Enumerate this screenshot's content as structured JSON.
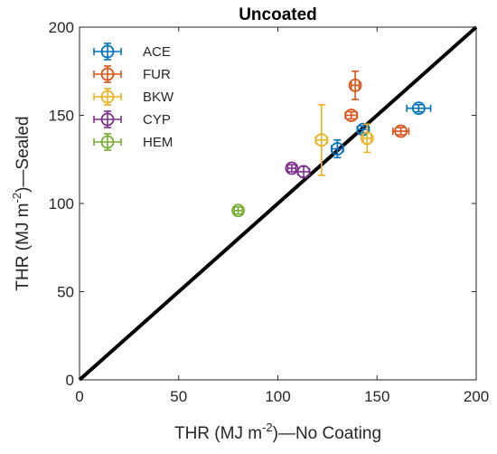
{
  "chart_data": {
    "type": "scatter",
    "title": "Uncoated",
    "xlabel": {
      "pre": "THR (MJ m",
      "sup": "-2",
      "post": ")—No Coating"
    },
    "ylabel": {
      "pre": "THR (MJ m",
      "sup": "-2",
      "post": ")—Sealed"
    },
    "xlim": [
      0,
      200
    ],
    "ylim": [
      0,
      200
    ],
    "xticks": [
      0,
      50,
      100,
      150,
      200
    ],
    "yticks": [
      0,
      50,
      100,
      150,
      200
    ],
    "grid": false,
    "legend_position": "top-left",
    "reference_line": {
      "x": [
        0,
        200
      ],
      "y": [
        0,
        200
      ],
      "color": "#000000"
    },
    "series": [
      {
        "name": "ACE",
        "color": "#0072BD",
        "points": [
          {
            "x": 130,
            "y": 131,
            "xerr": 3,
            "yerr": 5
          },
          {
            "x": 143,
            "y": 142,
            "xerr": 3,
            "yerr": 2
          },
          {
            "x": 171,
            "y": 154,
            "xerr": 6,
            "yerr": 2
          }
        ]
      },
      {
        "name": "FUR",
        "color": "#D95319",
        "points": [
          {
            "x": 137,
            "y": 150,
            "xerr": 3,
            "yerr": 2
          },
          {
            "x": 139,
            "y": 167,
            "xerr": 2,
            "yerr": 8
          },
          {
            "x": 162,
            "y": 141,
            "xerr": 4,
            "yerr": 2
          }
        ]
      },
      {
        "name": "BKW",
        "color": "#EDB120",
        "points": [
          {
            "x": 122,
            "y": 136,
            "xerr": 3,
            "yerr": 20
          },
          {
            "x": 145,
            "y": 137,
            "xerr": 2,
            "yerr": 8
          }
        ]
      },
      {
        "name": "CYP",
        "color": "#7E2F8E",
        "points": [
          {
            "x": 107,
            "y": 120,
            "xerr": 2,
            "yerr": 2
          },
          {
            "x": 113,
            "y": 118,
            "xerr": 3,
            "yerr": 3
          }
        ]
      },
      {
        "name": "HEM",
        "color": "#77AC30",
        "points": [
          {
            "x": 80,
            "y": 96,
            "xerr": 2,
            "yerr": 2
          }
        ]
      }
    ]
  }
}
